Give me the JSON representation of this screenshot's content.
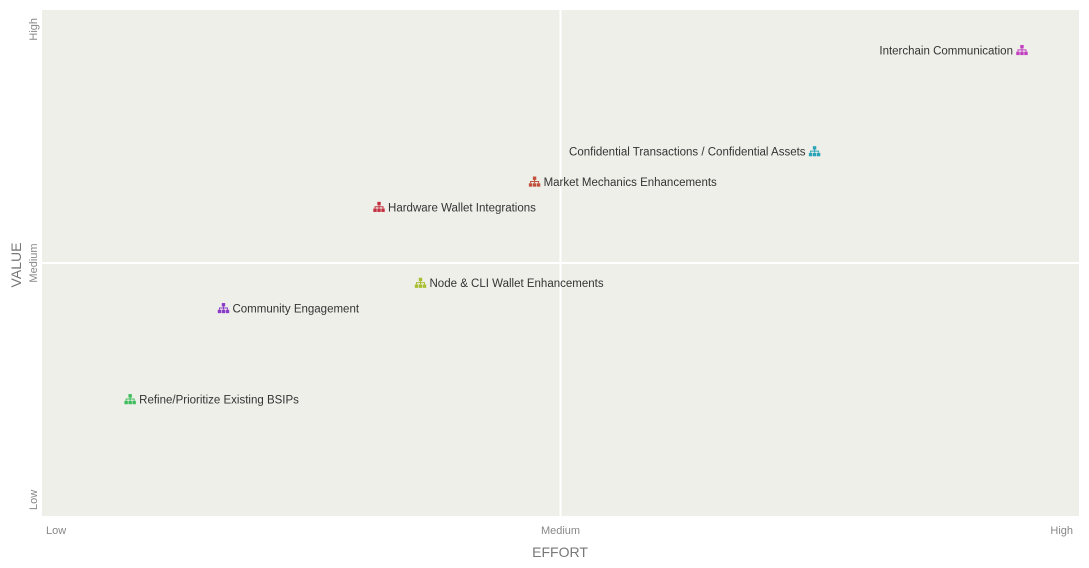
{
  "chart_data": {
    "type": "scatter",
    "xlabel": "EFFORT",
    "ylabel": "VALUE",
    "xlim": [
      0,
      2
    ],
    "ylim": [
      0,
      2
    ],
    "x_ticks": [
      {
        "value": 0,
        "label": "Low"
      },
      {
        "value": 1,
        "label": "Medium"
      },
      {
        "value": 2,
        "label": "High"
      }
    ],
    "y_ticks": [
      {
        "value": 0,
        "label": "Low"
      },
      {
        "value": 1,
        "label": "Medium"
      },
      {
        "value": 2,
        "label": "High"
      }
    ],
    "grid": false,
    "points": [
      {
        "label": "Interchain Communication",
        "x": 1.89,
        "y": 1.84,
        "color": "#c03ec0",
        "label_side": "left"
      },
      {
        "label": "Confidential Transactions / Confidential Assets",
        "x": 1.49,
        "y": 1.44,
        "color": "#2aa4b8",
        "label_side": "left"
      },
      {
        "label": "Market Mechanics Enhancements",
        "x": 0.95,
        "y": 1.32,
        "color": "#c0503c",
        "label_side": "right"
      },
      {
        "label": "Hardware Wallet Integrations",
        "x": 0.65,
        "y": 1.22,
        "color": "#c43040",
        "label_side": "right"
      },
      {
        "label": "Node & CLI Wallet Enhancements",
        "x": 0.73,
        "y": 0.92,
        "color": "#a8be2e",
        "label_side": "right"
      },
      {
        "label": "Community Engagement",
        "x": 0.35,
        "y": 0.82,
        "color": "#8a3cc8",
        "label_side": "right"
      },
      {
        "label": "Refine/Prioritize Existing BSIPs",
        "x": 0.17,
        "y": 0.46,
        "color": "#3cbc5a",
        "label_side": "right"
      }
    ],
    "colors": {
      "plot_background": "#efefea",
      "divider": "#ffffff"
    }
  }
}
